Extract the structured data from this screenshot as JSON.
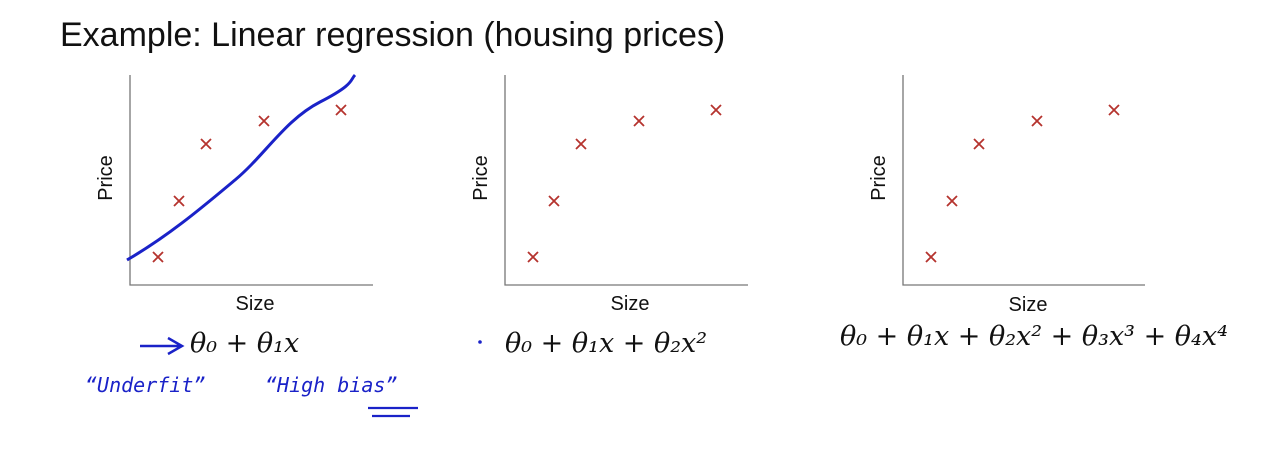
{
  "title": "Example: Linear regression (housing prices)",
  "panels": [
    {
      "y_label": "Price",
      "x_label": "Size",
      "formula": "θ₀ + θ₁x"
    },
    {
      "y_label": "Price",
      "x_label": "Size",
      "formula": "θ₀ + θ₁x + θ₂x²"
    },
    {
      "y_label": "Price",
      "x_label": "Size",
      "formula": "θ₀ + θ₁x + θ₂x² + θ₃x³ + θ₄x⁴"
    }
  ],
  "annotations": [
    "“Underfit”",
    "“High bias”"
  ]
}
